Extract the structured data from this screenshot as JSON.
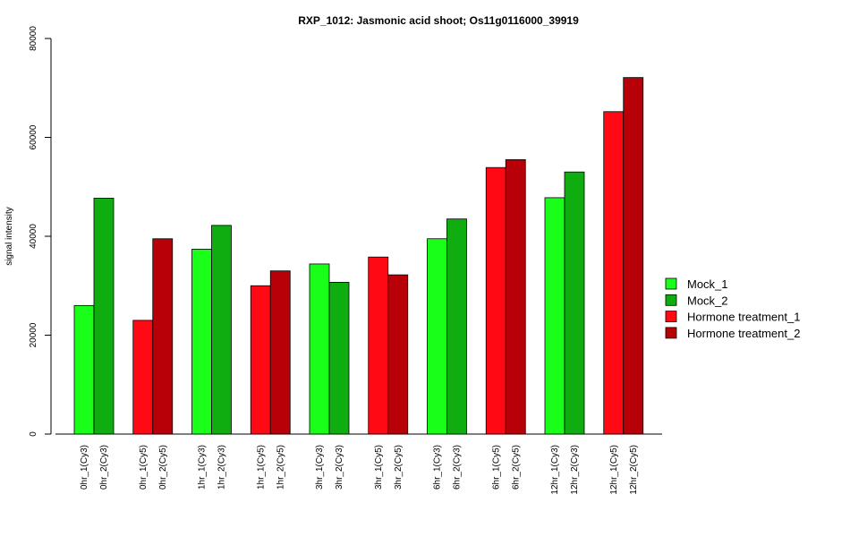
{
  "chart_data": {
    "type": "bar",
    "title": "RXP_1012: Jasmonic acid shoot; Os11g0116000_39919",
    "xlabel": "",
    "ylabel": "signal intensity",
    "ylim": [
      0,
      80000
    ],
    "yticks": [
      0,
      20000,
      40000,
      60000,
      80000
    ],
    "grid": false,
    "legend_position": "right",
    "legend": [
      {
        "label": "Mock_1",
        "color": "#1aff1a"
      },
      {
        "label": "Mock_2",
        "color": "#0fad0f"
      },
      {
        "label": "Hormone treatment_1",
        "color": "#ff0a14"
      },
      {
        "label": "Hormone treatment_2",
        "color": "#b80008"
      }
    ],
    "groups": [
      {
        "bars": [
          {
            "label": "0hr_1(Cy3)",
            "value": 26000,
            "series": 0
          },
          {
            "label": "0hr_2(Cy3)",
            "value": 47700,
            "series": 1
          }
        ]
      },
      {
        "bars": [
          {
            "label": "0hr_1(Cy5)",
            "value": 23000,
            "series": 2
          },
          {
            "label": "0hr_2(Cy5)",
            "value": 39500,
            "series": 3
          }
        ]
      },
      {
        "bars": [
          {
            "label": "1hr_1(Cy3)",
            "value": 37400,
            "series": 0
          },
          {
            "label": "1hr_2(Cy3)",
            "value": 42200,
            "series": 1
          }
        ]
      },
      {
        "bars": [
          {
            "label": "1hr_1(Cy5)",
            "value": 30000,
            "series": 2
          },
          {
            "label": "1hr_2(Cy5)",
            "value": 33000,
            "series": 3
          }
        ]
      },
      {
        "bars": [
          {
            "label": "3hr_1(Cy3)",
            "value": 34400,
            "series": 0
          },
          {
            "label": "3hr_2(Cy3)",
            "value": 30700,
            "series": 1
          }
        ]
      },
      {
        "bars": [
          {
            "label": "3hr_1(Cy5)",
            "value": 35800,
            "series": 2
          },
          {
            "label": "3hr_2(Cy5)",
            "value": 32200,
            "series": 3
          }
        ]
      },
      {
        "bars": [
          {
            "label": "6hr_1(Cy3)",
            "value": 39500,
            "series": 0
          },
          {
            "label": "6hr_2(Cy3)",
            "value": 43500,
            "series": 1
          }
        ]
      },
      {
        "bars": [
          {
            "label": "6hr_1(Cy5)",
            "value": 53900,
            "series": 2
          },
          {
            "label": "6hr_2(Cy5)",
            "value": 55500,
            "series": 3
          }
        ]
      },
      {
        "bars": [
          {
            "label": "12hr_1(Cy3)",
            "value": 47800,
            "series": 0
          },
          {
            "label": "12hr_2(Cy3)",
            "value": 53000,
            "series": 1
          }
        ]
      },
      {
        "bars": [
          {
            "label": "12hr_1(Cy5)",
            "value": 65200,
            "series": 2
          },
          {
            "label": "12hr_2(Cy5)",
            "value": 72100,
            "series": 3
          }
        ]
      }
    ]
  }
}
